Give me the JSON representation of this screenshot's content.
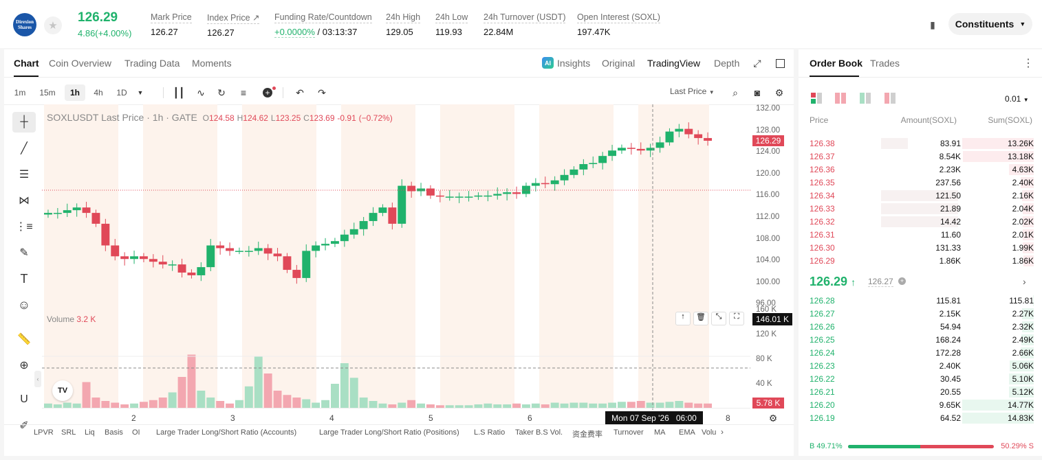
{
  "header": {
    "logo_text": "Direxion Shares",
    "last_price": "126.29",
    "change": "4.86(+4.00%)",
    "stats": [
      {
        "label": "Mark Price",
        "value": "126.27"
      },
      {
        "label": "Index Price ↗",
        "value": "126.27"
      },
      {
        "label": "Funding Rate/Countdown",
        "value_rate": "+0.0000%",
        "value_count": " / 03:13:37"
      },
      {
        "label": "24h High",
        "value": "129.05"
      },
      {
        "label": "24h Low",
        "value": "119.93"
      },
      {
        "label": "24h Turnover (USDT)",
        "value": "22.84M"
      },
      {
        "label": "Open Interest (SOXL)",
        "value": "197.47K"
      }
    ],
    "constituents": "Constituents"
  },
  "chart_panel": {
    "tabs": [
      "Chart",
      "Coin Overview",
      "Trading Data",
      "Moments"
    ],
    "view_tabs": [
      "Insights",
      "Original",
      "TradingView",
      "Depth"
    ],
    "timeframes": [
      "1m",
      "15m",
      "1h",
      "4h",
      "1D"
    ],
    "price_type": "Last Price",
    "ohlc": {
      "title": "SOXLUSDT Last Price · 1h · GATE",
      "o": "124.58",
      "h": "124.62",
      "l": "123.25",
      "c": "123.69",
      "chg": "-0.91",
      "pct": "(−0.72%)"
    },
    "volume_label": "Volume",
    "volume_value": "3.2 K",
    "price_tag": "126.29",
    "volume_tag": "146.01 K",
    "volume_tag2": "5.78 K",
    "crosshair_date": "Mon 07 Sep '26   06:00",
    "indicators": [
      "LPVR",
      "SRL",
      "Liq",
      "Basis",
      "OI",
      "Large Trader Long/Short Ratio (Accounts)",
      "Large Trader Long/Short Ratio (Positions)",
      "L.S Ratio",
      "Taker B.S Vol.",
      "资金费率",
      "Turnover",
      "MA",
      "EMA",
      "Volu"
    ],
    "tv_logo": "TV"
  },
  "chart_data": {
    "type": "candlestick",
    "title": "SOXLUSDT Last Price · 1h · GATE",
    "y_ticks": [
      "132.00",
      "128.00",
      "124.00",
      "120.00",
      "116.00",
      "112.00",
      "108.00",
      "104.00",
      "100.00",
      "96.00"
    ],
    "volume_ticks": [
      "160 K",
      "120 K",
      "80 K",
      "40 K"
    ],
    "x_ticks": [
      "2",
      "3",
      "4",
      "5",
      "6",
      "7",
      "8"
    ],
    "ylim": [
      96,
      132
    ],
    "close_path": [
      113,
      113,
      113.5,
      114,
      113,
      111,
      107,
      105,
      104.5,
      105,
      104.5,
      104,
      103.5,
      103.5,
      102,
      101.5,
      103,
      107,
      106.5,
      106,
      106,
      106,
      106.5,
      105.5,
      105,
      102.5,
      101,
      106,
      107,
      107.3,
      107.8,
      109,
      110,
      111.5,
      113,
      114,
      111,
      118,
      117,
      117.5,
      116.2,
      116,
      116,
      116,
      116,
      116.2,
      116.2,
      116.5,
      116.8,
      116.5,
      118,
      118.5,
      118.3,
      119,
      120,
      121,
      122,
      122.2,
      123.5,
      124.5,
      125,
      124.8,
      124.5,
      125,
      126,
      128,
      128.5,
      127.5,
      126.8,
      126.3
    ],
    "volume_values": [
      5,
      4,
      6,
      5,
      30,
      12,
      8,
      6,
      4,
      5,
      7,
      9,
      12,
      18,
      36,
      62,
      20,
      12,
      8,
      5,
      9,
      25,
      60,
      40,
      20,
      15,
      12,
      10,
      6,
      9,
      28,
      52,
      35,
      12,
      8,
      5,
      4,
      6,
      9,
      5,
      4,
      3,
      3,
      3,
      3,
      4,
      5,
      4,
      4,
      5,
      4,
      5,
      4,
      6,
      5,
      6,
      6,
      5,
      5,
      6,
      7,
      7,
      8,
      6,
      6,
      7,
      8,
      6,
      5,
      5
    ]
  },
  "orderbook": {
    "tabs": [
      "Order Book",
      "Trades"
    ],
    "precision": "0.01",
    "headers": [
      "Price",
      "Amount(SOXL)",
      "Sum(SOXL)"
    ],
    "asks": [
      {
        "price": "126.38",
        "amount": "83.91",
        "sum": "13.26K",
        "af": 0.35,
        "sf": 1.0
      },
      {
        "price": "126.37",
        "amount": "8.54K",
        "sum": "13.18K",
        "af": 0.0,
        "sf": 0.99
      },
      {
        "price": "126.36",
        "amount": "2.23K",
        "sum": "4.63K",
        "af": 0.0,
        "sf": 0.35
      },
      {
        "price": "126.35",
        "amount": "237.56",
        "sum": "2.40K",
        "af": 0.0,
        "sf": 0.18
      },
      {
        "price": "126.34",
        "amount": "121.50",
        "sum": "2.16K",
        "af": 1.0,
        "sf": 0.16
      },
      {
        "price": "126.33",
        "amount": "21.89",
        "sum": "2.04K",
        "af": 1.0,
        "sf": 0.15
      },
      {
        "price": "126.32",
        "amount": "14.42",
        "sum": "2.02K",
        "af": 1.0,
        "sf": 0.15
      },
      {
        "price": "126.31",
        "amount": "11.60",
        "sum": "2.01K",
        "af": 0.0,
        "sf": 0.15
      },
      {
        "price": "126.30",
        "amount": "131.33",
        "sum": "1.99K",
        "af": 0.0,
        "sf": 0.15
      },
      {
        "price": "126.29",
        "amount": "1.86K",
        "sum": "1.86K",
        "af": 0.0,
        "sf": 0.14
      }
    ],
    "mid_price": "126.29",
    "mid_arrow": "↑",
    "mark": "126.27",
    "bids": [
      {
        "price": "126.28",
        "amount": "115.81",
        "sum": "115.81",
        "sf": 0.01
      },
      {
        "price": "126.27",
        "amount": "2.15K",
        "sum": "2.27K",
        "sf": 0.16
      },
      {
        "price": "126.26",
        "amount": "54.94",
        "sum": "2.32K",
        "sf": 0.16
      },
      {
        "price": "126.25",
        "amount": "168.24",
        "sum": "2.49K",
        "sf": 0.17
      },
      {
        "price": "126.24",
        "amount": "172.28",
        "sum": "2.66K",
        "sf": 0.18
      },
      {
        "price": "126.23",
        "amount": "2.40K",
        "sum": "5.06K",
        "sf": 0.34
      },
      {
        "price": "126.22",
        "amount": "30.45",
        "sum": "5.10K",
        "sf": 0.35
      },
      {
        "price": "126.21",
        "amount": "20.55",
        "sum": "5.12K",
        "sf": 0.35
      },
      {
        "price": "126.20",
        "amount": "9.65K",
        "sum": "14.77K",
        "sf": 1.0
      },
      {
        "price": "126.19",
        "amount": "64.52",
        "sum": "14.83K",
        "sf": 1.0
      }
    ],
    "buy_ratio": "B 49.71%",
    "sell_ratio": "50.29% S",
    "buy_fraction": 0.4971,
    "colors": {
      "green": "#20b26c",
      "red": "#e04858"
    }
  }
}
